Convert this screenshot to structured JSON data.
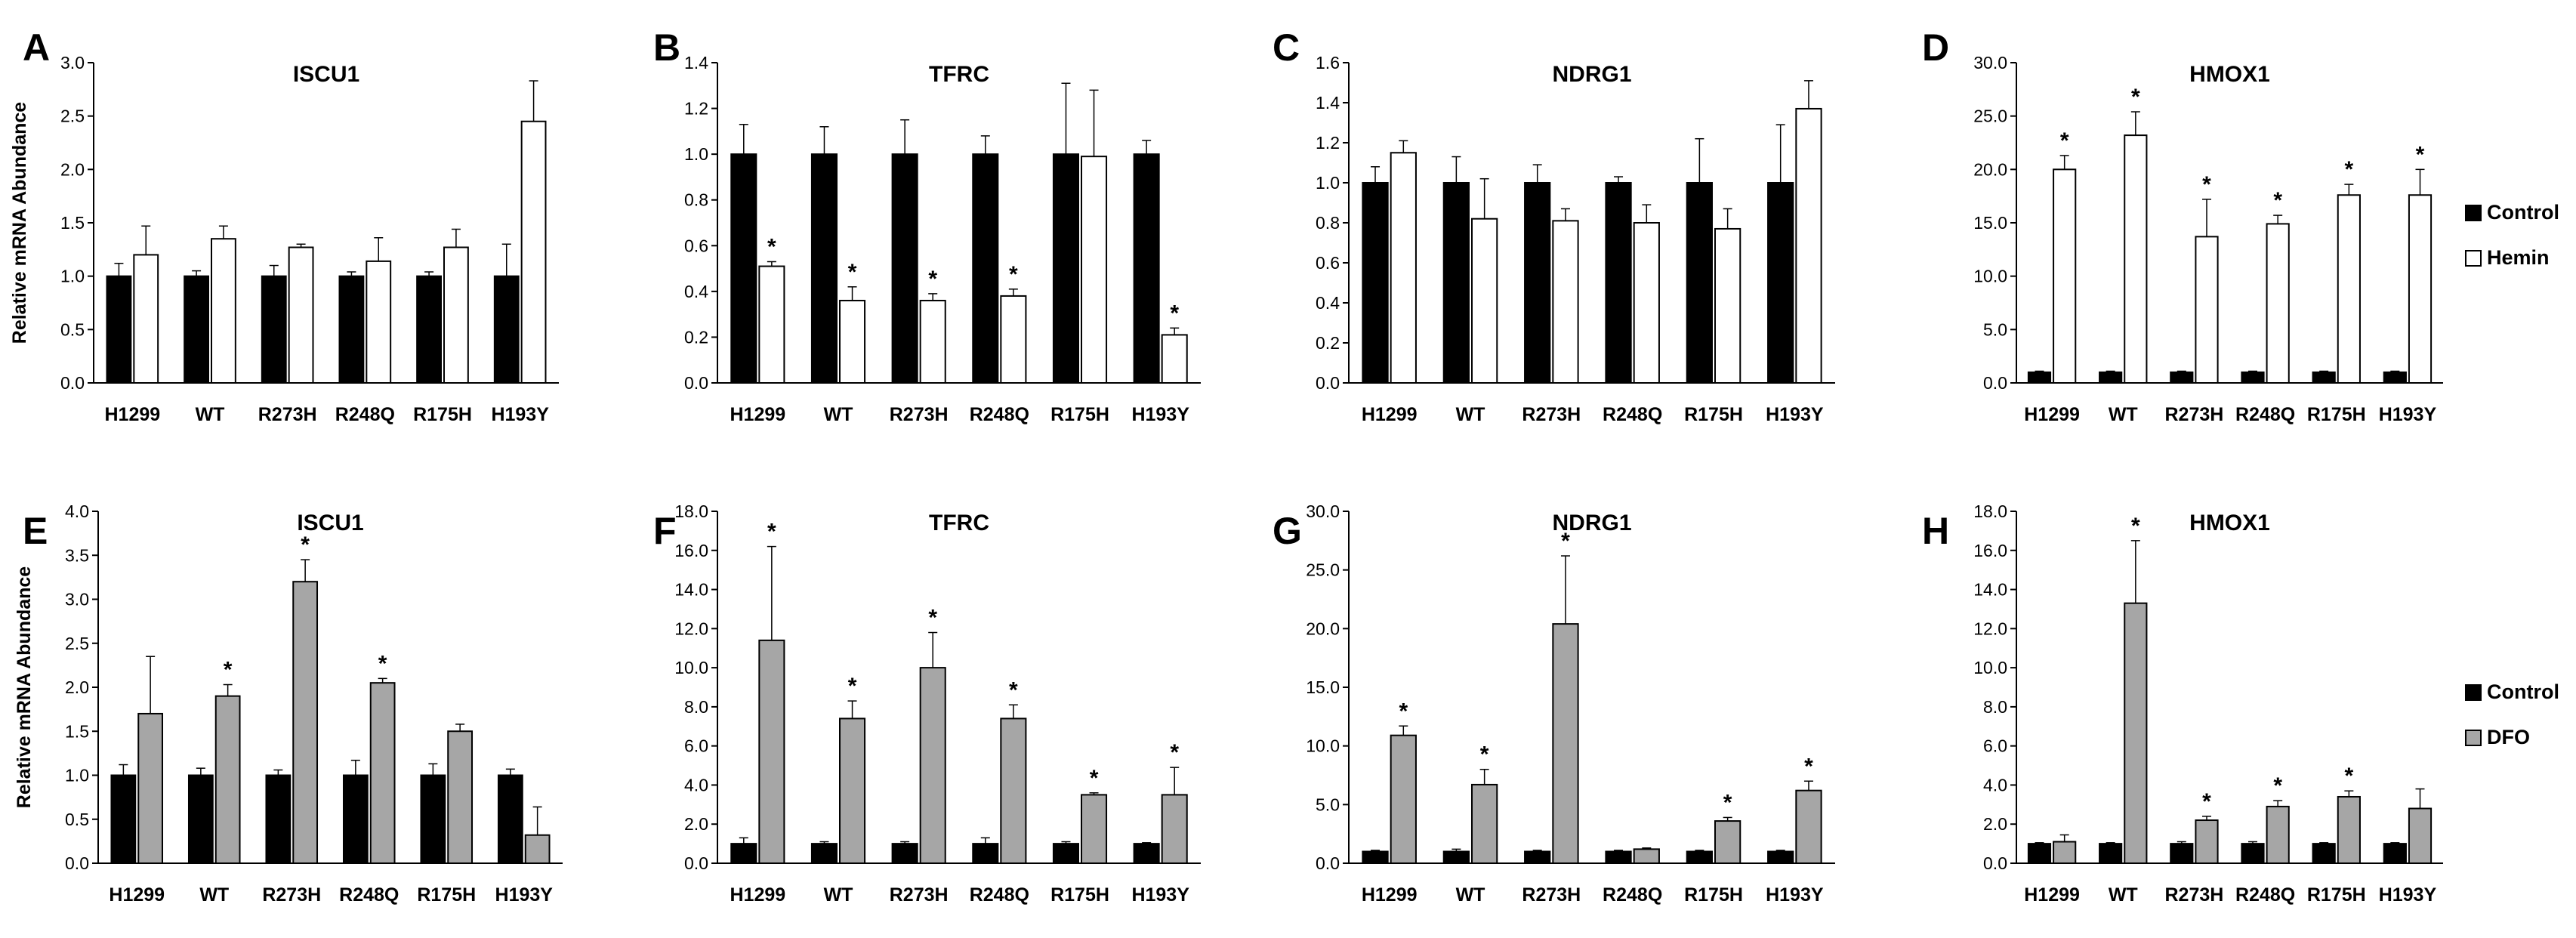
{
  "figure": {
    "legends": [
      {
        "row": 0,
        "entries": [
          "Control",
          "Hemin"
        ]
      },
      {
        "row": 1,
        "entries": [
          "Control",
          "DFO"
        ]
      }
    ]
  },
  "chart_data": [
    {
      "panel": "A",
      "type": "bar",
      "title": "ISCU1",
      "ylabel": "Relative mRNA Abundance",
      "ylim": [
        0,
        3.0
      ],
      "yticks": [
        "0.0",
        "0.5",
        "1.0",
        "1.5",
        "2.0",
        "2.5",
        "3.0"
      ],
      "categories": [
        "H1299",
        "WT",
        "R273H",
        "R248Q",
        "R175H",
        "H193Y"
      ],
      "series": [
        {
          "name": "Control",
          "color": "#000000",
          "values": [
            1.0,
            1.0,
            1.0,
            1.0,
            1.0,
            1.0
          ],
          "errors": [
            0.12,
            0.05,
            0.1,
            0.04,
            0.04,
            0.3
          ]
        },
        {
          "name": "Hemin",
          "color": "#ffffff",
          "values": [
            1.2,
            1.35,
            1.27,
            1.14,
            1.27,
            2.45
          ],
          "errors": [
            0.27,
            0.12,
            0.03,
            0.22,
            0.17,
            0.38
          ]
        }
      ],
      "significant": [
        false,
        false,
        false,
        false,
        false,
        false
      ]
    },
    {
      "panel": "B",
      "type": "bar",
      "title": "TFRC",
      "ylabel": "",
      "ylim": [
        0,
        1.4
      ],
      "yticks": [
        "0.0",
        "0.2",
        "0.4",
        "0.6",
        "0.8",
        "1.0",
        "1.2",
        "1.4"
      ],
      "categories": [
        "H1299",
        "WT",
        "R273H",
        "R248Q",
        "R175H",
        "H193Y"
      ],
      "series": [
        {
          "name": "Control",
          "color": "#000000",
          "values": [
            1.0,
            1.0,
            1.0,
            1.0,
            1.0,
            1.0
          ],
          "errors": [
            0.13,
            0.12,
            0.15,
            0.08,
            0.31,
            0.06
          ]
        },
        {
          "name": "Hemin",
          "color": "#ffffff",
          "values": [
            0.51,
            0.36,
            0.36,
            0.38,
            0.99,
            0.21
          ],
          "errors": [
            0.02,
            0.06,
            0.03,
            0.03,
            0.29,
            0.03
          ]
        }
      ],
      "significant": [
        true,
        true,
        true,
        true,
        false,
        true
      ]
    },
    {
      "panel": "C",
      "type": "bar",
      "title": "NDRG1",
      "ylabel": "",
      "ylim": [
        0,
        1.6
      ],
      "yticks": [
        "0.0",
        "0.2",
        "0.4",
        "0.6",
        "0.8",
        "1.0",
        "1.2",
        "1.4",
        "1.6"
      ],
      "categories": [
        "H1299",
        "WT",
        "R273H",
        "R248Q",
        "R175H",
        "H193Y"
      ],
      "series": [
        {
          "name": "Control",
          "color": "#000000",
          "values": [
            1.0,
            1.0,
            1.0,
            1.0,
            1.0,
            1.0
          ],
          "errors": [
            0.08,
            0.13,
            0.09,
            0.03,
            0.22,
            0.29
          ]
        },
        {
          "name": "Hemin",
          "color": "#ffffff",
          "values": [
            1.15,
            0.82,
            0.81,
            0.8,
            0.77,
            1.37
          ],
          "errors": [
            0.06,
            0.2,
            0.06,
            0.09,
            0.1,
            0.14
          ]
        }
      ],
      "significant": [
        false,
        false,
        false,
        false,
        false,
        false
      ]
    },
    {
      "panel": "D",
      "type": "bar",
      "title": "HMOX1",
      "ylabel": "",
      "ylim": [
        0,
        30.0
      ],
      "yticks": [
        "0.0",
        "5.0",
        "10.0",
        "15.0",
        "20.0",
        "25.0",
        "30.0"
      ],
      "categories": [
        "H1299",
        "WT",
        "R273H",
        "R248Q",
        "R175H",
        "H193Y"
      ],
      "series": [
        {
          "name": "Control",
          "color": "#000000",
          "values": [
            1.0,
            1.0,
            1.0,
            1.0,
            1.0,
            1.0
          ],
          "errors": [
            0.1,
            0.1,
            0.1,
            0.1,
            0.1,
            0.1
          ]
        },
        {
          "name": "Hemin",
          "color": "#ffffff",
          "values": [
            20.0,
            23.2,
            13.7,
            14.9,
            17.6,
            17.6
          ],
          "errors": [
            1.3,
            2.2,
            3.5,
            0.8,
            1.0,
            2.4
          ]
        }
      ],
      "significant": [
        true,
        true,
        true,
        true,
        true,
        true
      ]
    },
    {
      "panel": "E",
      "type": "bar",
      "title": "ISCU1",
      "ylabel": "Relative mRNA Abundance",
      "ylim": [
        0,
        4.0
      ],
      "yticks": [
        "0.0",
        "0.5",
        "1.0",
        "1.5",
        "2.0",
        "2.5",
        "3.0",
        "3.5",
        "4.0"
      ],
      "categories": [
        "H1299",
        "WT",
        "R273H",
        "R248Q",
        "R175H",
        "H193Y"
      ],
      "series": [
        {
          "name": "Control",
          "color": "#000000",
          "values": [
            1.0,
            1.0,
            1.0,
            1.0,
            1.0,
            1.0
          ],
          "errors": [
            0.12,
            0.08,
            0.06,
            0.17,
            0.13,
            0.07
          ]
        },
        {
          "name": "DFO",
          "color": "#a6a6a6",
          "values": [
            1.7,
            1.9,
            3.2,
            2.05,
            1.5,
            0.32
          ],
          "errors": [
            0.65,
            0.13,
            0.25,
            0.05,
            0.08,
            0.32
          ]
        }
      ],
      "significant": [
        false,
        true,
        true,
        true,
        false,
        false
      ]
    },
    {
      "panel": "F",
      "type": "bar",
      "title": "TFRC",
      "ylabel": "",
      "ylim": [
        0,
        18.0
      ],
      "yticks": [
        "0.0",
        "2.0",
        "4.0",
        "6.0",
        "8.0",
        "10.0",
        "12.0",
        "14.0",
        "16.0",
        "18.0"
      ],
      "categories": [
        "H1299",
        "WT",
        "R273H",
        "R248Q",
        "R175H",
        "H193Y"
      ],
      "series": [
        {
          "name": "Control",
          "color": "#000000",
          "values": [
            1.0,
            1.0,
            1.0,
            1.0,
            1.0,
            1.0
          ],
          "errors": [
            0.3,
            0.1,
            0.1,
            0.3,
            0.1,
            0.05
          ]
        },
        {
          "name": "DFO",
          "color": "#a6a6a6",
          "values": [
            11.4,
            7.4,
            10.0,
            7.4,
            3.5,
            3.5
          ],
          "errors": [
            4.8,
            0.9,
            1.8,
            0.7,
            0.1,
            1.4
          ]
        }
      ],
      "significant": [
        true,
        true,
        true,
        true,
        true,
        true
      ]
    },
    {
      "panel": "G",
      "type": "bar",
      "title": "NDRG1",
      "ylabel": "",
      "ylim": [
        0,
        30.0
      ],
      "yticks": [
        "0.0",
        "5.0",
        "10.0",
        "15.0",
        "20.0",
        "25.0",
        "30.0"
      ],
      "categories": [
        "H1299",
        "WT",
        "R273H",
        "R248Q",
        "R175H",
        "H193Y"
      ],
      "series": [
        {
          "name": "Control",
          "color": "#000000",
          "values": [
            1.0,
            1.0,
            1.0,
            1.0,
            1.0,
            1.0
          ],
          "errors": [
            0.1,
            0.2,
            0.1,
            0.1,
            0.1,
            0.1
          ]
        },
        {
          "name": "DFO",
          "color": "#a6a6a6",
          "values": [
            10.9,
            6.7,
            20.4,
            1.2,
            3.6,
            6.2
          ],
          "errors": [
            0.8,
            1.3,
            5.8,
            0.1,
            0.3,
            0.8
          ]
        }
      ],
      "significant": [
        true,
        true,
        true,
        false,
        true,
        true
      ]
    },
    {
      "panel": "H",
      "type": "bar",
      "title": "HMOX1",
      "ylabel": "",
      "ylim": [
        0,
        18.0
      ],
      "yticks": [
        "0.0",
        "2.0",
        "4.0",
        "6.0",
        "8.0",
        "10.0",
        "12.0",
        "14.0",
        "16.0",
        "18.0"
      ],
      "categories": [
        "H1299",
        "WT",
        "R273H",
        "R248Q",
        "R175H",
        "H193Y"
      ],
      "series": [
        {
          "name": "Control",
          "color": "#000000",
          "values": [
            1.0,
            1.0,
            1.0,
            1.0,
            1.0,
            1.0
          ],
          "errors": [
            0.05,
            0.05,
            0.1,
            0.1,
            0.05,
            0.05
          ]
        },
        {
          "name": "DFO",
          "color": "#a6a6a6",
          "values": [
            1.1,
            13.3,
            2.2,
            2.9,
            3.4,
            2.8
          ],
          "errors": [
            0.35,
            3.2,
            0.2,
            0.3,
            0.3,
            1.0
          ]
        }
      ],
      "significant": [
        false,
        true,
        true,
        true,
        true,
        false
      ]
    }
  ]
}
